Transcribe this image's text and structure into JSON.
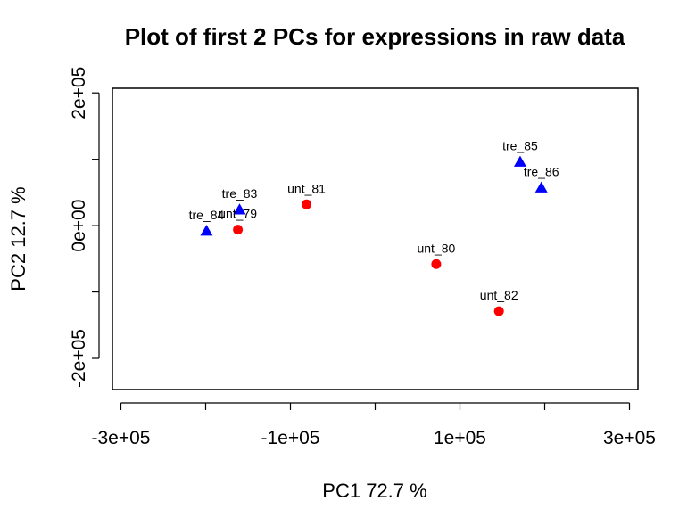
{
  "chart_data": {
    "type": "scatter",
    "title": "Plot of first 2 PCs for expressions in raw data",
    "xlabel": "PC1 72.7 %",
    "ylabel": "PC2 12.7 %",
    "xlim": [
      -310000,
      310000
    ],
    "ylim": [
      -247000,
      207000
    ],
    "xticks": [
      -300000,
      -200000,
      -100000,
      0,
      100000,
      200000,
      300000
    ],
    "xtick_labels": [
      "-3e+05",
      "",
      "-1e+05",
      "",
      "1e+05",
      "",
      "3e+05"
    ],
    "yticks": [
      -200000,
      -100000,
      0,
      100000,
      200000
    ],
    "ytick_labels": [
      "-2e+05",
      "",
      "0e+00",
      "",
      "2e+05"
    ],
    "grid": false,
    "legend": "none",
    "colors": {
      "treated": "#0000ff",
      "untreated": "#ff0000"
    },
    "points": [
      {
        "label": "tre_83",
        "x": -160000,
        "y": 24000,
        "group": "treated",
        "marker": "triangle"
      },
      {
        "label": "tre_84",
        "x": -199000,
        "y": -8000,
        "group": "treated",
        "marker": "triangle"
      },
      {
        "label": "tre_85",
        "x": 171000,
        "y": 96000,
        "group": "treated",
        "marker": "triangle"
      },
      {
        "label": "tre_86",
        "x": 196000,
        "y": 57000,
        "group": "treated",
        "marker": "triangle"
      },
      {
        "label": "unt_79",
        "x": -162000,
        "y": -6000,
        "group": "untreated",
        "marker": "circle"
      },
      {
        "label": "unt_80",
        "x": 72000,
        "y": -58000,
        "group": "untreated",
        "marker": "circle"
      },
      {
        "label": "unt_81",
        "x": -81000,
        "y": 32000,
        "group": "untreated",
        "marker": "circle"
      },
      {
        "label": "unt_82",
        "x": 146000,
        "y": -129000,
        "group": "untreated",
        "marker": "circle"
      }
    ]
  }
}
